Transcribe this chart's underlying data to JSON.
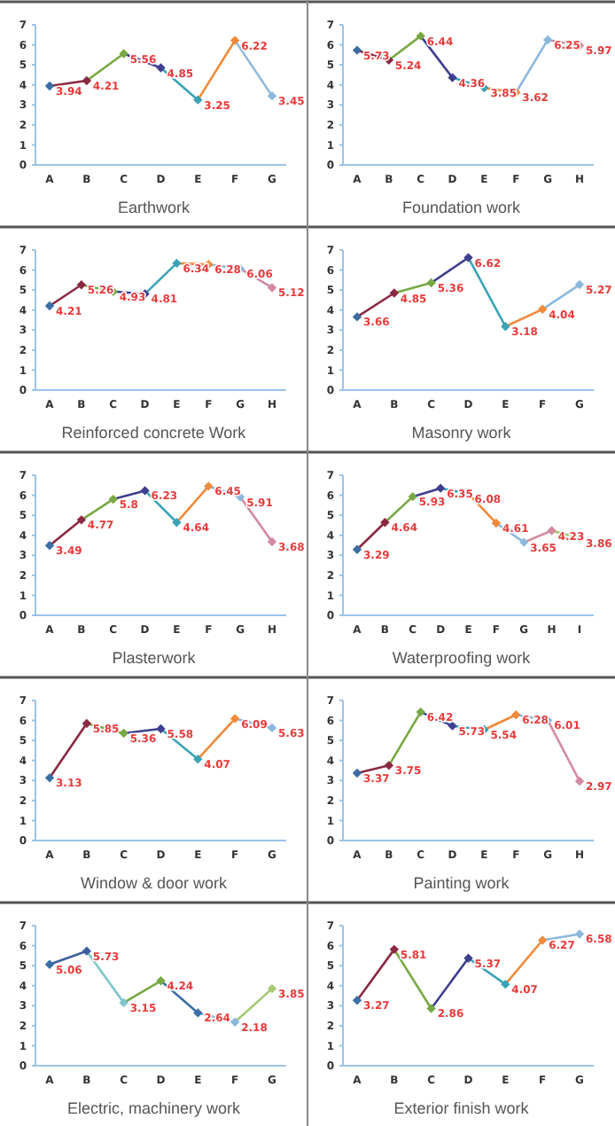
{
  "chart_data": [
    {
      "type": "line",
      "title": "Earthwork",
      "categories": [
        "A",
        "B",
        "C",
        "D",
        "E",
        "F",
        "G"
      ],
      "series": [
        {
          "colors": [
            "#3a6ea5",
            "#8b2942",
            "#77a843",
            "#3f3f8f",
            "#3aa3b5",
            "#f08a3a",
            "#8db8de"
          ],
          "values": [
            3.94,
            4.21,
            5.56,
            4.85,
            3.25,
            6.22,
            3.45
          ]
        }
      ],
      "ylim": [
        0,
        7
      ],
      "yticks": [
        0,
        1,
        2,
        3,
        4,
        5,
        6,
        7
      ],
      "data_labels": true,
      "marker": "diamond"
    },
    {
      "type": "line",
      "title": "Foundation work",
      "categories": [
        "A",
        "B",
        "C",
        "D",
        "E",
        "F",
        "G",
        "H"
      ],
      "series": [
        {
          "colors": [
            "#3a6ea5",
            "#8b2942",
            "#77a843",
            "#3f3f8f",
            "#3aa3b5",
            "#f08a3a",
            "#8db8de",
            "#d28aa0"
          ],
          "values": [
            5.73,
            5.24,
            6.44,
            4.36,
            3.85,
            3.62,
            6.25,
            5.97
          ]
        }
      ],
      "ylim": [
        0,
        7
      ],
      "yticks": [
        0,
        1,
        2,
        3,
        4,
        5,
        6,
        7
      ],
      "data_labels": true,
      "marker": "diamond"
    },
    {
      "type": "line",
      "title": "Reinforced concrete Work",
      "categories": [
        "A",
        "B",
        "C",
        "D",
        "E",
        "F",
        "G",
        "H"
      ],
      "series": [
        {
          "colors": [
            "#3a6ea5",
            "#8b2942",
            "#77a843",
            "#3f3f8f",
            "#3aa3b5",
            "#f08a3a",
            "#8db8de",
            "#d28aa0"
          ],
          "values": [
            4.21,
            5.26,
            4.93,
            4.81,
            6.34,
            6.28,
            6.06,
            5.12
          ]
        }
      ],
      "ylim": [
        0,
        7
      ],
      "yticks": [
        0,
        1,
        2,
        3,
        4,
        5,
        6,
        7
      ],
      "data_labels": true,
      "marker": "diamond"
    },
    {
      "type": "line",
      "title": "Masonry work",
      "categories": [
        "A",
        "B",
        "C",
        "D",
        "E",
        "F",
        "G"
      ],
      "series": [
        {
          "colors": [
            "#3a6ea5",
            "#8b2942",
            "#77a843",
            "#3f3f8f",
            "#3aa3b5",
            "#f08a3a",
            "#8db8de"
          ],
          "values": [
            3.66,
            4.85,
            5.36,
            6.62,
            3.18,
            4.04,
            5.27
          ]
        }
      ],
      "ylim": [
        0,
        7
      ],
      "yticks": [
        0,
        1,
        2,
        3,
        4,
        5,
        6,
        7
      ],
      "data_labels": true,
      "marker": "diamond"
    },
    {
      "type": "line",
      "title": "Plasterwork",
      "categories": [
        "A",
        "B",
        "C",
        "D",
        "E",
        "F",
        "G",
        "H"
      ],
      "series": [
        {
          "colors": [
            "#3a6ea5",
            "#8b2942",
            "#77a843",
            "#3f3f8f",
            "#3aa3b5",
            "#f08a3a",
            "#8db8de",
            "#d28aa0"
          ],
          "values": [
            3.49,
            4.77,
            5.8,
            6.23,
            4.64,
            6.45,
            5.91,
            3.68
          ]
        }
      ],
      "ylim": [
        0,
        7
      ],
      "yticks": [
        0,
        1,
        2,
        3,
        4,
        5,
        6,
        7
      ],
      "data_labels": true,
      "marker": "diamond"
    },
    {
      "type": "line",
      "title": "Waterproofing work",
      "categories": [
        "A",
        "B",
        "C",
        "D",
        "E",
        "F",
        "G",
        "H",
        "I"
      ],
      "series": [
        {
          "colors": [
            "#3a6ea5",
            "#8b2942",
            "#77a843",
            "#3f3f8f",
            "#3aa3b5",
            "#f08a3a",
            "#8db8de",
            "#d28aa0",
            "#a6c872"
          ],
          "values": [
            3.29,
            4.64,
            5.93,
            6.35,
            6.08,
            4.61,
            3.65,
            4.23,
            3.86
          ]
        }
      ],
      "ylim": [
        0,
        7
      ],
      "yticks": [
        0,
        1,
        2,
        3,
        4,
        5,
        6,
        7
      ],
      "data_labels": true,
      "marker": "diamond"
    },
    {
      "type": "line",
      "title": "Window & door work",
      "categories": [
        "A",
        "B",
        "C",
        "D",
        "E",
        "F",
        "G"
      ],
      "series": [
        {
          "colors": [
            "#3a6ea5",
            "#8b2942",
            "#77a843",
            "#3f3f8f",
            "#3aa3b5",
            "#f08a3a",
            "#8db8de"
          ],
          "values": [
            3.13,
            5.85,
            5.36,
            5.58,
            4.07,
            6.09,
            5.63
          ]
        }
      ],
      "ylim": [
        0,
        7
      ],
      "yticks": [
        0,
        1,
        2,
        3,
        4,
        5,
        6,
        7
      ],
      "data_labels": true,
      "marker": "diamond"
    },
    {
      "type": "line",
      "title": "Painting work",
      "categories": [
        "A",
        "B",
        "C",
        "D",
        "E",
        "F",
        "G",
        "H"
      ],
      "series": [
        {
          "colors": [
            "#3a6ea5",
            "#8b2942",
            "#77a843",
            "#3f3f8f",
            "#3aa3b5",
            "#f08a3a",
            "#8db8de",
            "#d28aa0"
          ],
          "values": [
            3.37,
            3.75,
            6.42,
            5.73,
            5.54,
            6.28,
            6.01,
            2.97
          ]
        }
      ],
      "ylim": [
        0,
        7
      ],
      "yticks": [
        0,
        1,
        2,
        3,
        4,
        5,
        6,
        7
      ],
      "data_labels": true,
      "marker": "diamond"
    },
    {
      "type": "line",
      "title": "Electric, machinery work",
      "categories": [
        "A",
        "B",
        "C",
        "D",
        "E",
        "F",
        "G"
      ],
      "series": [
        {
          "colors": [
            "#3a6ea5",
            "#3f5fa0",
            "#7ec4c8",
            "#77a843",
            "#3a6ea5",
            "#8db8de",
            "#a6c872"
          ],
          "values": [
            5.06,
            5.73,
            3.15,
            4.24,
            2.64,
            2.18,
            3.85
          ]
        }
      ],
      "ylim": [
        0,
        7
      ],
      "yticks": [
        0,
        1,
        2,
        3,
        4,
        5,
        6,
        7
      ],
      "data_labels": true,
      "marker": "diamond"
    },
    {
      "type": "line",
      "title": "Exterior finish work",
      "categories": [
        "A",
        "B",
        "C",
        "D",
        "E",
        "F",
        "G"
      ],
      "series": [
        {
          "colors": [
            "#3a6ea5",
            "#8b2942",
            "#77a843",
            "#3f3f8f",
            "#3aa3b5",
            "#f08a3a",
            "#8db8de"
          ],
          "values": [
            3.27,
            5.81,
            2.86,
            5.37,
            4.07,
            6.27,
            6.58
          ]
        }
      ],
      "ylim": [
        0,
        7
      ],
      "yticks": [
        0,
        1,
        2,
        3,
        4,
        5,
        6,
        7
      ],
      "data_labels": true,
      "marker": "diamond"
    }
  ]
}
